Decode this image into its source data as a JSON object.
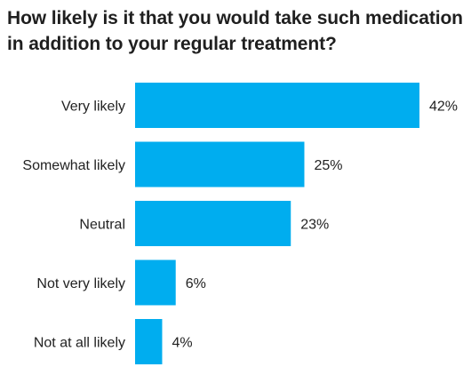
{
  "chart_data": {
    "type": "bar",
    "orientation": "horizontal",
    "title": "How likely is it that you would take such medication in addition to your regular treatment?",
    "categories": [
      "Very likely",
      "Somewhat likely",
      "Neutral",
      "Not very likely",
      "Not at all likely"
    ],
    "values": [
      42,
      25,
      23,
      6,
      4
    ],
    "value_labels": [
      "42%",
      "25%",
      "23%",
      "6%",
      "4%"
    ],
    "xlabel": "",
    "ylabel": "",
    "xlim": [
      0,
      42
    ],
    "grid": false,
    "bar_color": "#00adef"
  }
}
